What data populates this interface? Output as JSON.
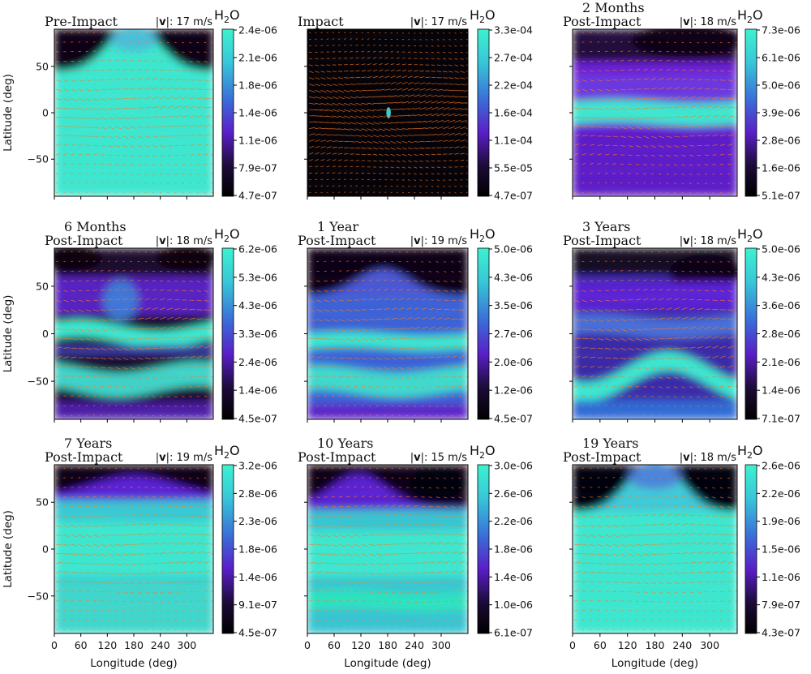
{
  "figure": {
    "x_axis_label": "Longitude (deg)",
    "y_axis_label": "Latitude (deg)",
    "x_ticks": [
      "0",
      "60",
      "120",
      "180",
      "240",
      "300"
    ],
    "y_ticks": [
      "50",
      "0",
      "−50"
    ],
    "colorbar_label_main": "H",
    "colorbar_label_sub": "2",
    "colorbar_label_tail": "O",
    "speed_prefix": "|",
    "speed_bold": "v",
    "speed_mid": "|: "
  },
  "colors": {
    "low": "#0c0614",
    "mid": "#6a1fd1",
    "mid_blue": "#3b72d8",
    "high": "#3de6cf",
    "wind": "#ff7a1a"
  },
  "chart_data": [
    {
      "type": "heatmap",
      "title_line1": "",
      "title_line2": "Pre-Impact",
      "wind_speed": "17 m/s",
      "xlim": [
        0,
        360
      ],
      "ylim": [
        -90,
        90
      ],
      "colorbar_ticks": [
        "2.4e-06",
        "2.1e-06",
        "1.8e-06",
        "1.4e-06",
        "1.1e-06",
        "7.9e-07",
        "4.7e-07"
      ],
      "pattern": "pre"
    },
    {
      "type": "heatmap",
      "title_line1": "",
      "title_line2": "Impact",
      "wind_speed": "17 m/s",
      "xlim": [
        0,
        360
      ],
      "ylim": [
        -90,
        90
      ],
      "colorbar_ticks": [
        "3.3e-04",
        "2.7e-04",
        "2.2e-04",
        "1.6e-04",
        "1.1e-04",
        "5.5e-05",
        "4.7e-07"
      ],
      "pattern": "impact"
    },
    {
      "type": "heatmap",
      "title_line1": "2 Months",
      "title_line2": "Post-Impact",
      "wind_speed": "18 m/s",
      "xlim": [
        0,
        360
      ],
      "ylim": [
        -90,
        90
      ],
      "colorbar_ticks": [
        "7.3e-06",
        "6.1e-06",
        "5.0e-06",
        "3.9e-06",
        "2.8e-06",
        "1.6e-06",
        "5.1e-07"
      ],
      "pattern": "m2"
    },
    {
      "type": "heatmap",
      "title_line1": "6 Months",
      "title_line2": "Post-Impact",
      "wind_speed": "18 m/s",
      "xlim": [
        0,
        360
      ],
      "ylim": [
        -90,
        90
      ],
      "colorbar_ticks": [
        "6.2e-06",
        "5.3e-06",
        "4.3e-06",
        "3.3e-06",
        "2.4e-06",
        "1.4e-06",
        "4.5e-07"
      ],
      "pattern": "m6"
    },
    {
      "type": "heatmap",
      "title_line1": "1 Year",
      "title_line2": "Post-Impact",
      "wind_speed": "19 m/s",
      "xlim": [
        0,
        360
      ],
      "ylim": [
        -90,
        90
      ],
      "colorbar_ticks": [
        "5.0e-06",
        "4.3e-06",
        "3.5e-06",
        "2.7e-06",
        "2.0e-06",
        "1.2e-06",
        "4.5e-07"
      ],
      "pattern": "y1"
    },
    {
      "type": "heatmap",
      "title_line1": "3 Years",
      "title_line2": "Post-Impact",
      "wind_speed": "18 m/s",
      "xlim": [
        0,
        360
      ],
      "ylim": [
        -90,
        90
      ],
      "colorbar_ticks": [
        "5.0e-06",
        "4.3e-06",
        "3.6e-06",
        "2.8e-06",
        "2.1e-06",
        "1.4e-06",
        "7.1e-07"
      ],
      "pattern": "y3"
    },
    {
      "type": "heatmap",
      "title_line1": "7 Years",
      "title_line2": "Post-Impact",
      "wind_speed": "19 m/s",
      "xlim": [
        0,
        360
      ],
      "ylim": [
        -90,
        90
      ],
      "colorbar_ticks": [
        "3.2e-06",
        "2.8e-06",
        "2.3e-06",
        "1.8e-06",
        "1.4e-06",
        "9.1e-07",
        "4.5e-07"
      ],
      "pattern": "y7"
    },
    {
      "type": "heatmap",
      "title_line1": "10 Years",
      "title_line2": "Post-Impact",
      "wind_speed": "15 m/s",
      "xlim": [
        0,
        360
      ],
      "ylim": [
        -90,
        90
      ],
      "colorbar_ticks": [
        "3.0e-06",
        "2.6e-06",
        "2.2e-06",
        "1.8e-06",
        "1.4e-06",
        "1.0e-06",
        "6.1e-07"
      ],
      "pattern": "y10"
    },
    {
      "type": "heatmap",
      "title_line1": "19 Years",
      "title_line2": "Post-Impact",
      "wind_speed": "18 m/s",
      "xlim": [
        0,
        360
      ],
      "ylim": [
        -90,
        90
      ],
      "colorbar_ticks": [
        "2.6e-06",
        "2.2e-06",
        "1.9e-06",
        "1.5e-06",
        "1.1e-06",
        "7.9e-07",
        "4.3e-07"
      ],
      "pattern": "y19"
    }
  ]
}
